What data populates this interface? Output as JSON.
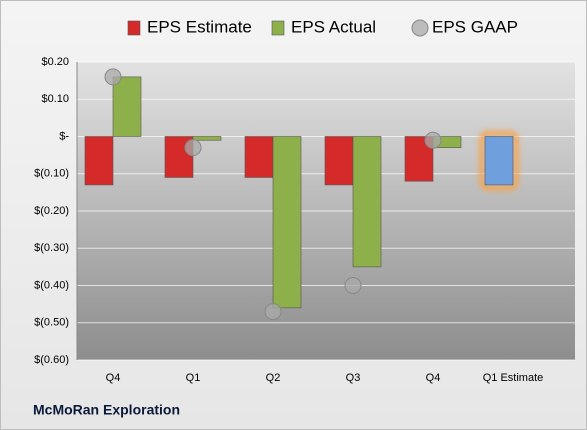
{
  "chart_data": {
    "type": "bar",
    "categories": [
      "Q4",
      "Q1",
      "Q2",
      "Q3",
      "Q4",
      "Q1 Estimate"
    ],
    "series": [
      {
        "name": "EPS Estimate",
        "color": "#d42a2a",
        "values": [
          -0.13,
          -0.11,
          -0.11,
          -0.13,
          -0.12,
          -0.13
        ],
        "point_colors": [
          "#d42a2a",
          "#d42a2a",
          "#d42a2a",
          "#d42a2a",
          "#d42a2a",
          "#6f9fdc"
        ],
        "glow": [
          false,
          false,
          false,
          false,
          false,
          true
        ],
        "glow_color": "#f7a24a"
      },
      {
        "name": "EPS Actual",
        "color": "#8db04a",
        "values": [
          0.16,
          -0.01,
          -0.46,
          -0.35,
          -0.03,
          null
        ]
      },
      {
        "name": "EPS GAAP",
        "color": "#a9a9a9",
        "type": "scatter",
        "values": [
          0.16,
          -0.03,
          -0.47,
          -0.4,
          -0.01,
          null
        ]
      }
    ],
    "ylim": [
      -0.6,
      0.2
    ],
    "yticks": [
      {
        "value": 0.2,
        "label": "$0.20"
      },
      {
        "value": 0.1,
        "label": "$0.10"
      },
      {
        "value": 0,
        "label": "$-"
      },
      {
        "value": -0.1,
        "label": "$(0.10)"
      },
      {
        "value": -0.2,
        "label": "$(0.20)"
      },
      {
        "value": -0.3,
        "label": "$(0.30)"
      },
      {
        "value": -0.4,
        "label": "$(0.40)"
      },
      {
        "value": -0.5,
        "label": "$(0.50)"
      },
      {
        "value": -0.6,
        "label": "$(0.60)"
      }
    ],
    "grid": true,
    "legend": "top",
    "footer": "McMoRan Exploration"
  }
}
